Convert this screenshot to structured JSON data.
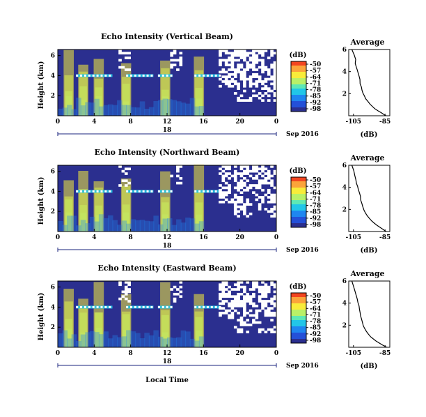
{
  "colors": {
    "colormap": [
      "#2b2f8f",
      "#2450d8",
      "#1f86f0",
      "#22c6e8",
      "#5ee8b5",
      "#b9f068",
      "#f8ec3a",
      "#fba43a",
      "#f2451f"
    ],
    "nodata": "#ffffff",
    "axis_line": "#1a237e",
    "text": "#000000"
  },
  "chart_data": [
    {
      "type": "heatmap",
      "title": "Echo Intensity (Vertical Beam)",
      "ylabel": "Height (km)",
      "y_ticks": [
        "6",
        "4",
        "2"
      ],
      "x_ticks": [
        "0",
        "4",
        "8",
        "12",
        "16",
        "20",
        "0"
      ],
      "xlim_hours": [
        0,
        24
      ],
      "date_day": "18",
      "date_month": "Sep 2016",
      "colorbar": {
        "label": "(dB)",
        "ticks": [
          "-50",
          "-57",
          "-64",
          "-71",
          "-78",
          "-85",
          "-92",
          "-98"
        ],
        "range": [
          -98,
          -50
        ]
      },
      "features": {
        "bright_layer_km": 4,
        "surface_echo_peaks_hours": [
          1.2,
          2.8,
          4.5,
          7.5,
          11.8,
          15.5
        ]
      }
    },
    {
      "type": "line",
      "title": "Average",
      "xlabel": "(dB)",
      "x_ticks": [
        "-105",
        "-85"
      ],
      "y_ticks": [
        "6",
        "4",
        "2"
      ],
      "xlim": [
        -108,
        -82
      ],
      "ylim": [
        0,
        6
      ],
      "x": [
        -106.0,
        -104.5,
        -103.6,
        -103.9,
        -103.2,
        -102.7,
        -102.1,
        -101.5,
        -100.9,
        -100.8,
        -100.0,
        -99.6,
        -99.0,
        -98.1,
        -97.3,
        -95.9,
        -94.5,
        -93.1,
        -91.6,
        -89.5,
        -87.4,
        -85.8,
        -84.5
      ],
      "y": [
        6.0,
        5.5,
        5.1,
        4.75,
        4.4,
        4.2,
        3.9,
        3.6,
        3.3,
        2.9,
        2.6,
        2.3,
        2.05,
        1.8,
        1.55,
        1.3,
        1.05,
        0.85,
        0.65,
        0.45,
        0.28,
        0.12,
        0.0
      ]
    },
    {
      "type": "heatmap",
      "title": "Echo Intensity (Northward Beam)",
      "ylabel": "Height (km)",
      "y_ticks": [
        "6",
        "4",
        "2"
      ],
      "x_ticks": [
        "0",
        "4",
        "8",
        "12",
        "16",
        "20",
        "0"
      ],
      "xlim_hours": [
        0,
        24
      ],
      "date_day": "18",
      "date_month": "Sep 2016",
      "colorbar": {
        "label": "(dB)",
        "ticks": [
          "-50",
          "-57",
          "-64",
          "-71",
          "-78",
          "-85",
          "-92",
          "-98"
        ],
        "range": [
          -98,
          -50
        ]
      },
      "features": {
        "bright_layer_km": 4,
        "surface_echo_peaks_hours": [
          1.2,
          2.8,
          4.5,
          7.5,
          11.8,
          15.5
        ]
      }
    },
    {
      "type": "line",
      "title": "Average",
      "xlabel": "(dB)",
      "x_ticks": [
        "-105",
        "-85"
      ],
      "y_ticks": [
        "6",
        "4",
        "2"
      ],
      "xlim": [
        -108,
        -82
      ],
      "ylim": [
        0,
        6
      ],
      "x": [
        -106.0,
        -104.8,
        -104.2,
        -103.5,
        -103.1,
        -102.4,
        -101.9,
        -101.2,
        -100.6,
        -100.4,
        -99.7,
        -99.1,
        -98.4,
        -97.5,
        -96.4,
        -95.0,
        -93.4,
        -91.8,
        -90.0,
        -88.2,
        -86.6,
        -85.4,
        -84.2
      ],
      "y": [
        6.0,
        5.5,
        5.1,
        4.7,
        4.35,
        4.1,
        3.8,
        3.5,
        3.2,
        2.85,
        2.55,
        2.25,
        1.95,
        1.7,
        1.45,
        1.2,
        0.95,
        0.75,
        0.55,
        0.38,
        0.22,
        0.1,
        0.0
      ]
    },
    {
      "type": "heatmap",
      "title": "Echo Intensity (Eastward Beam)",
      "ylabel": "Height (km)",
      "y_ticks": [
        "6",
        "4",
        "2"
      ],
      "x_ticks": [
        "0",
        "4",
        "8",
        "12",
        "16",
        "20",
        "0"
      ],
      "xlim_hours": [
        0,
        24
      ],
      "date_day": "18",
      "date_month": "Sep 2016",
      "xlabel": "Local Time",
      "colorbar": {
        "label": "(dB)",
        "ticks": [
          "-50",
          "-57",
          "-64",
          "-71",
          "-78",
          "-85",
          "-92",
          "-98"
        ],
        "range": [
          -98,
          -50
        ]
      },
      "features": {
        "bright_layer_km": 4,
        "surface_echo_peaks_hours": [
          1.2,
          2.8,
          4.5,
          7.5,
          11.8,
          15.5
        ]
      }
    },
    {
      "type": "line",
      "title": "Average",
      "xlabel": "(dB)",
      "x_ticks": [
        "-105",
        "-85"
      ],
      "y_ticks": [
        "6",
        "4",
        "2"
      ],
      "xlim": [
        -108,
        -82
      ],
      "ylim": [
        0,
        6
      ],
      "x": [
        -106.0,
        -104.9,
        -104.1,
        -103.3,
        -102.6,
        -102.2,
        -101.5,
        -101.2,
        -100.8,
        -100.5,
        -99.9,
        -99.3,
        -98.8,
        -97.9,
        -96.9,
        -95.6,
        -94.1,
        -92.4,
        -90.6,
        -88.6,
        -86.8,
        -85.3,
        -84.0
      ],
      "y": [
        6.0,
        5.5,
        5.1,
        4.7,
        4.35,
        4.05,
        3.75,
        3.45,
        3.15,
        2.85,
        2.55,
        2.25,
        1.95,
        1.7,
        1.45,
        1.2,
        0.95,
        0.75,
        0.55,
        0.38,
        0.22,
        0.1,
        0.0
      ]
    }
  ]
}
